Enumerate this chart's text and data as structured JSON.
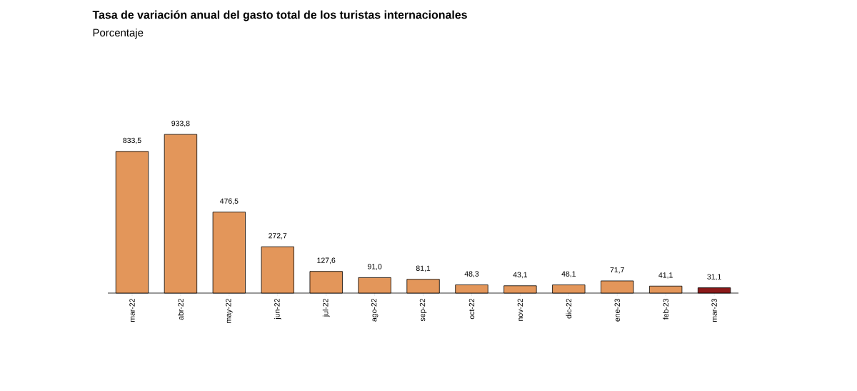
{
  "chart_data": {
    "type": "bar",
    "title": "Tasa de variación anual del gasto total de los turistas internacionales",
    "subtitle": "Porcentaje",
    "categories": [
      "mar-22",
      "abr-22",
      "may-22",
      "jun-22",
      "jul-22",
      "ago-22",
      "sep-22",
      "oct-22",
      "nov-22",
      "dic-22",
      "ene-23",
      "feb-23",
      "mar-23"
    ],
    "values": [
      833.5,
      933.8,
      476.5,
      272.7,
      127.6,
      91.0,
      81.1,
      48.3,
      43.1,
      48.1,
      71.7,
      41.1,
      31.1
    ],
    "value_labels": [
      "833,5",
      "933,8",
      "476,5",
      "272,7",
      "127,6",
      "91,0",
      "81,1",
      "48,3",
      "43,1",
      "48,1",
      "71,7",
      "41,1",
      "31,1"
    ],
    "colors": [
      "#e3965a",
      "#e3965a",
      "#e3965a",
      "#e3965a",
      "#e3965a",
      "#e3965a",
      "#e3965a",
      "#e3965a",
      "#e3965a",
      "#e3965a",
      "#e3965a",
      "#e3965a",
      "#8b1a1a"
    ]
  }
}
